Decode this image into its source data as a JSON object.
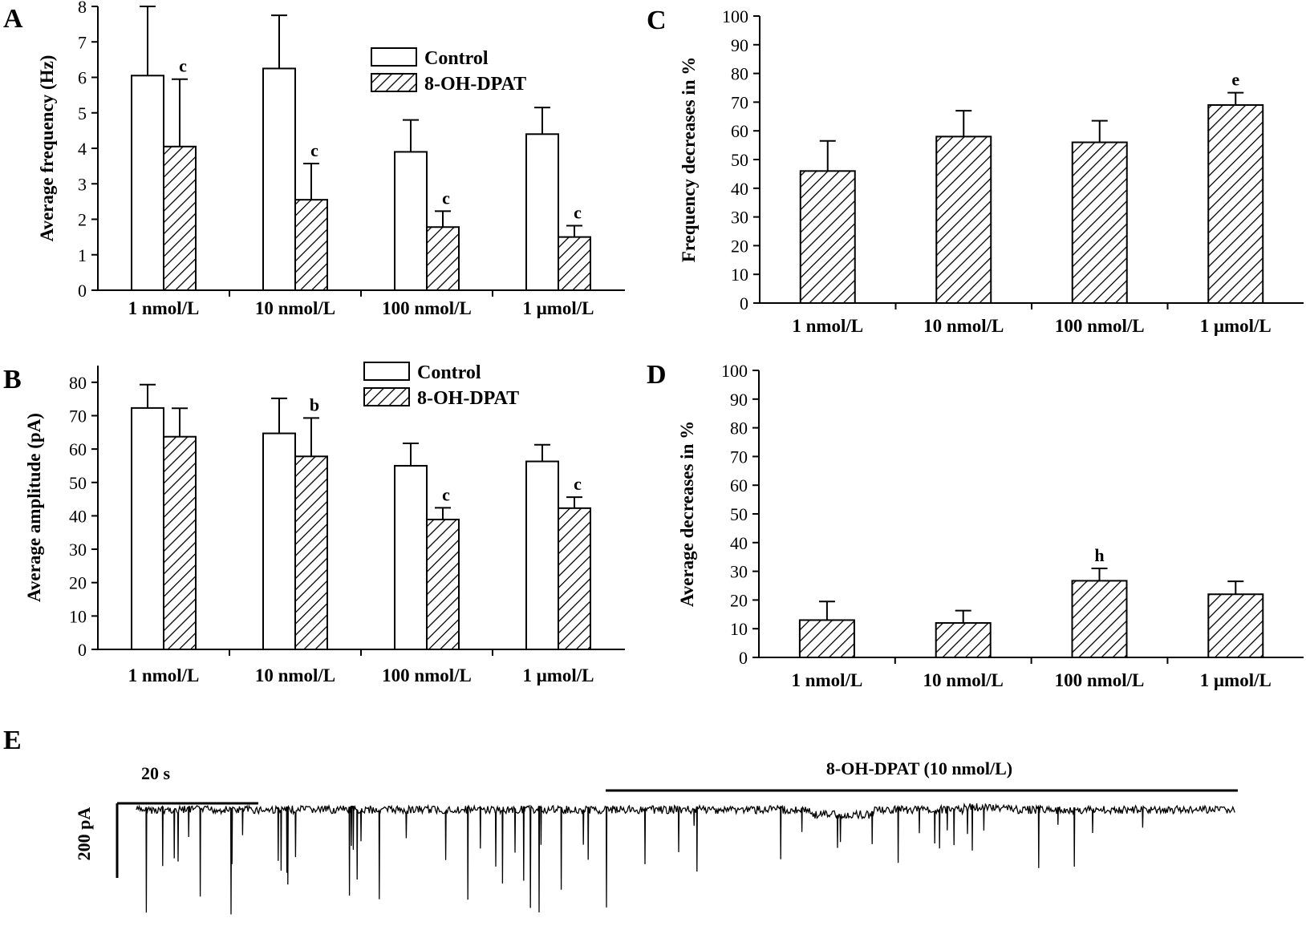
{
  "chart_data": [
    {
      "panel": "A",
      "type": "bar",
      "ylabel": "Average frequency (Hz)",
      "ylim": [
        0,
        8
      ],
      "yticks": [
        0,
        1,
        2,
        3,
        4,
        5,
        6,
        7,
        8
      ],
      "categories": [
        "1 nmol/L",
        "10 nmol/L",
        "100 nmol/L",
        "1 μmol/L"
      ],
      "legend": "top-right",
      "series": [
        {
          "name": "Control",
          "fill": "white",
          "values": [
            6.05,
            6.25,
            3.9,
            4.4
          ],
          "errors": [
            1.95,
            1.5,
            0.9,
            0.75
          ],
          "labels": [
            "",
            "",
            "",
            ""
          ]
        },
        {
          "name": "8-OH-DPAT",
          "fill": "hatched",
          "values": [
            4.05,
            2.55,
            1.78,
            1.5
          ],
          "errors": [
            1.9,
            1.02,
            0.45,
            0.32
          ],
          "labels": [
            "c",
            "c",
            "c",
            "c"
          ]
        }
      ]
    },
    {
      "panel": "B",
      "type": "bar",
      "ylabel": "Average amplitude (pA)",
      "ylim": [
        0,
        85
      ],
      "yticks": [
        0,
        10,
        20,
        30,
        40,
        50,
        60,
        70,
        80
      ],
      "categories": [
        "1 nmol/L",
        "10 nmol/L",
        "100 nmol/L",
        "1 μmol/L"
      ],
      "legend": "top-right",
      "series": [
        {
          "name": "Control",
          "fill": "white",
          "values": [
            72.3,
            64.7,
            55,
            56.3
          ],
          "errors": [
            7,
            10.5,
            6.7,
            5
          ],
          "labels": [
            "",
            "",
            "",
            ""
          ]
        },
        {
          "name": "8-OH-DPAT",
          "fill": "hatched",
          "values": [
            63.7,
            57.8,
            38.9,
            42.3
          ],
          "errors": [
            8.5,
            11.5,
            3.5,
            3.3
          ],
          "labels": [
            "",
            "b",
            "c",
            "c"
          ]
        }
      ]
    },
    {
      "panel": "C",
      "type": "bar",
      "ylabel": "Frequency decreases in %",
      "ylim": [
        0,
        100
      ],
      "yticks": [
        0,
        10,
        20,
        30,
        40,
        50,
        60,
        70,
        80,
        90,
        100
      ],
      "categories": [
        "1 nmol/L",
        "10 nmol/L",
        "100 nmol/L",
        "1 μmol/L"
      ],
      "series": [
        {
          "fill": "hatched",
          "values": [
            46,
            58,
            56,
            69
          ],
          "errors": [
            10.5,
            9,
            7.5,
            4.3
          ],
          "labels": [
            "",
            "",
            "",
            "e"
          ]
        }
      ]
    },
    {
      "panel": "D",
      "type": "bar",
      "ylabel": "Average decreases in %",
      "ylim": [
        0,
        100
      ],
      "yticks": [
        0,
        10,
        20,
        30,
        40,
        50,
        60,
        70,
        80,
        90,
        100
      ],
      "categories": [
        "1 nmol/L",
        "10 nmol/L",
        "100 nmol/L",
        "1 μmol/L"
      ],
      "series": [
        {
          "fill": "hatched",
          "values": [
            13,
            12,
            26.7,
            22
          ],
          "errors": [
            6.5,
            4.3,
            4.3,
            4.5
          ],
          "labels": [
            "",
            "",
            "h",
            ""
          ]
        }
      ]
    }
  ],
  "trace": {
    "panel": "E",
    "time_scale": "20 s",
    "amplitude_scale": "200 pA",
    "drug_label": "8-OH-DPAT (10 nmol/L)"
  }
}
